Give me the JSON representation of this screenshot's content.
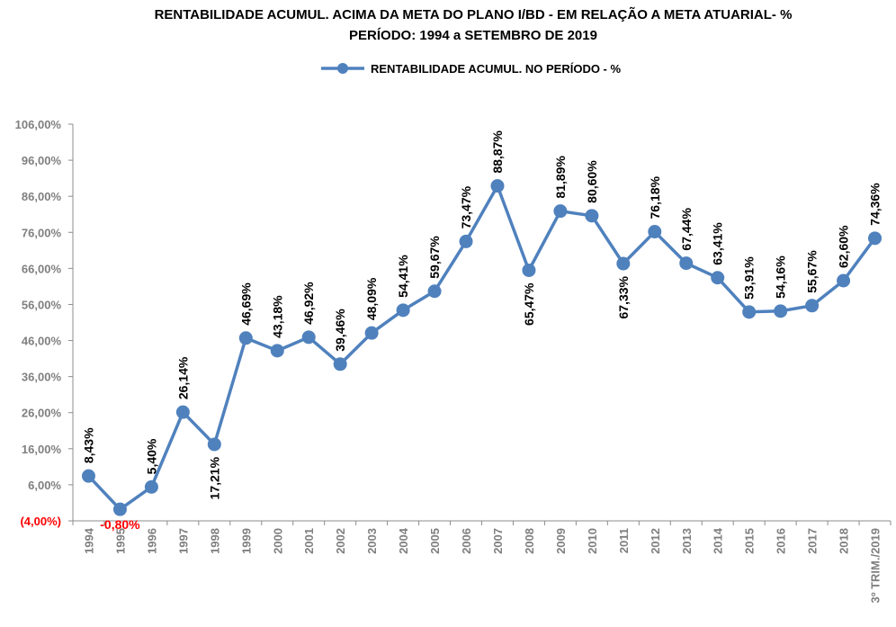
{
  "chart_data": {
    "type": "line",
    "title": "RENTABILIDADE ACUMUL. ACIMA DA META DO PLANO I/BD - EM RELAÇÃO A META ATUARIAL- %",
    "subtitle": "PERÍODO: 1994 a  SETEMBRO DE 2019",
    "legend_position": "top-center",
    "grid": false,
    "series_color": "#4f81bd",
    "ylim": [
      -4,
      106
    ],
    "yticks": [
      -4,
      6,
      16,
      26,
      36,
      46,
      56,
      66,
      76,
      86,
      96,
      106
    ],
    "ytick_labels": [
      "(4,00%)",
      "6,00%",
      "16,00%",
      "26,00%",
      "36,00%",
      "46,00%",
      "56,00%",
      "66,00%",
      "76,00%",
      "86,00%",
      "96,00%",
      "106,00%"
    ],
    "categories": [
      "1994",
      "1995",
      "1996",
      "1997",
      "1998",
      "1999",
      "2000",
      "2001",
      "2002",
      "2003",
      "2004",
      "2005",
      "2006",
      "2007",
      "2008",
      "2009",
      "2010",
      "2011",
      "2012",
      "2013",
      "2014",
      "2015",
      "2016",
      "2017",
      "2018",
      "3º TRIM./2019"
    ],
    "series": [
      {
        "name": "RENTABILIDADE ACUMUL. NO PERÍODO - %",
        "values": [
          8.43,
          -0.8,
          5.4,
          26.14,
          17.21,
          46.69,
          43.18,
          46.92,
          39.46,
          48.09,
          54.41,
          59.67,
          73.47,
          88.87,
          65.47,
          81.89,
          80.6,
          67.33,
          76.18,
          67.44,
          63.41,
          53.91,
          54.16,
          55.67,
          62.6,
          74.36
        ],
        "labels": [
          "8,43%",
          "-0,80%",
          "5,40%",
          "26,14%",
          "17,21%",
          "46,69%",
          "43,18%",
          "46,92%",
          "39,46%",
          "48,09%",
          "54,41%",
          "59,67%",
          "73,47%",
          "88,87%",
          "65,47%",
          "81,89%",
          "80,60%",
          "67,33%",
          "76,18%",
          "67,44%",
          "63,41%",
          "53,91%",
          "54,16%",
          "55,67%",
          "62,60%",
          "74,36%"
        ]
      }
    ]
  }
}
